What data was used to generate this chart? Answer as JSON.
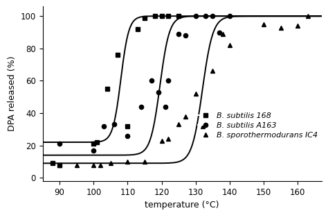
{
  "xlabel": "temperature (°C)",
  "ylabel": "DPA released (%)",
  "xlim": [
    85,
    167
  ],
  "ylim": [
    -2,
    106
  ],
  "xticks": [
    90,
    100,
    110,
    120,
    130,
    140,
    150,
    160
  ],
  "yticks": [
    0,
    20,
    40,
    60,
    80,
    100
  ],
  "series": [
    {
      "label_italic": "B. subtilis",
      "label_normal": " 168",
      "marker": "s",
      "data_x": [
        88,
        90,
        100,
        101,
        104,
        107,
        110,
        113,
        115,
        118,
        120,
        122,
        125
      ],
      "data_y": [
        9,
        8,
        21,
        22,
        55,
        76,
        32,
        92,
        99,
        100,
        100,
        100,
        100
      ],
      "sigmoid_x0": 108.0,
      "sigmoid_k": 0.85,
      "sigmoid_ymin": 22,
      "sigmoid_ymax": 100
    },
    {
      "label_italic": "B. subtilis",
      "label_normal": " A163",
      "marker": "o",
      "data_x": [
        90,
        100,
        103,
        106,
        110,
        114,
        117,
        119,
        121,
        122,
        125,
        127,
        130,
        133,
        135,
        137,
        140
      ],
      "data_y": [
        21,
        17,
        32,
        33,
        26,
        44,
        60,
        53,
        44,
        60,
        89,
        88,
        100,
        100,
        100,
        90,
        100
      ],
      "sigmoid_x0": 119.5,
      "sigmoid_k": 0.72,
      "sigmoid_ymin": 14,
      "sigmoid_ymax": 100
    },
    {
      "label_italic": "B. sporothermodurans",
      "label_normal": " IC4",
      "marker": "^",
      "data_x": [
        90,
        95,
        100,
        102,
        105,
        110,
        115,
        120,
        122,
        125,
        127,
        130,
        132,
        135,
        138,
        140,
        150,
        155,
        160,
        163
      ],
      "data_y": [
        8,
        8,
        8,
        8,
        9,
        10,
        10,
        23,
        24,
        33,
        38,
        52,
        32,
        66,
        89,
        82,
        95,
        93,
        94,
        100
      ],
      "sigmoid_x0": 132.0,
      "sigmoid_k": 0.65,
      "sigmoid_ymin": 9,
      "sigmoid_ymax": 100
    }
  ],
  "background_color": "#ffffff",
  "line_color": "black",
  "line_width": 1.4,
  "marker_size": 4.5,
  "font_size": 9,
  "tick_fontsize": 8.5
}
